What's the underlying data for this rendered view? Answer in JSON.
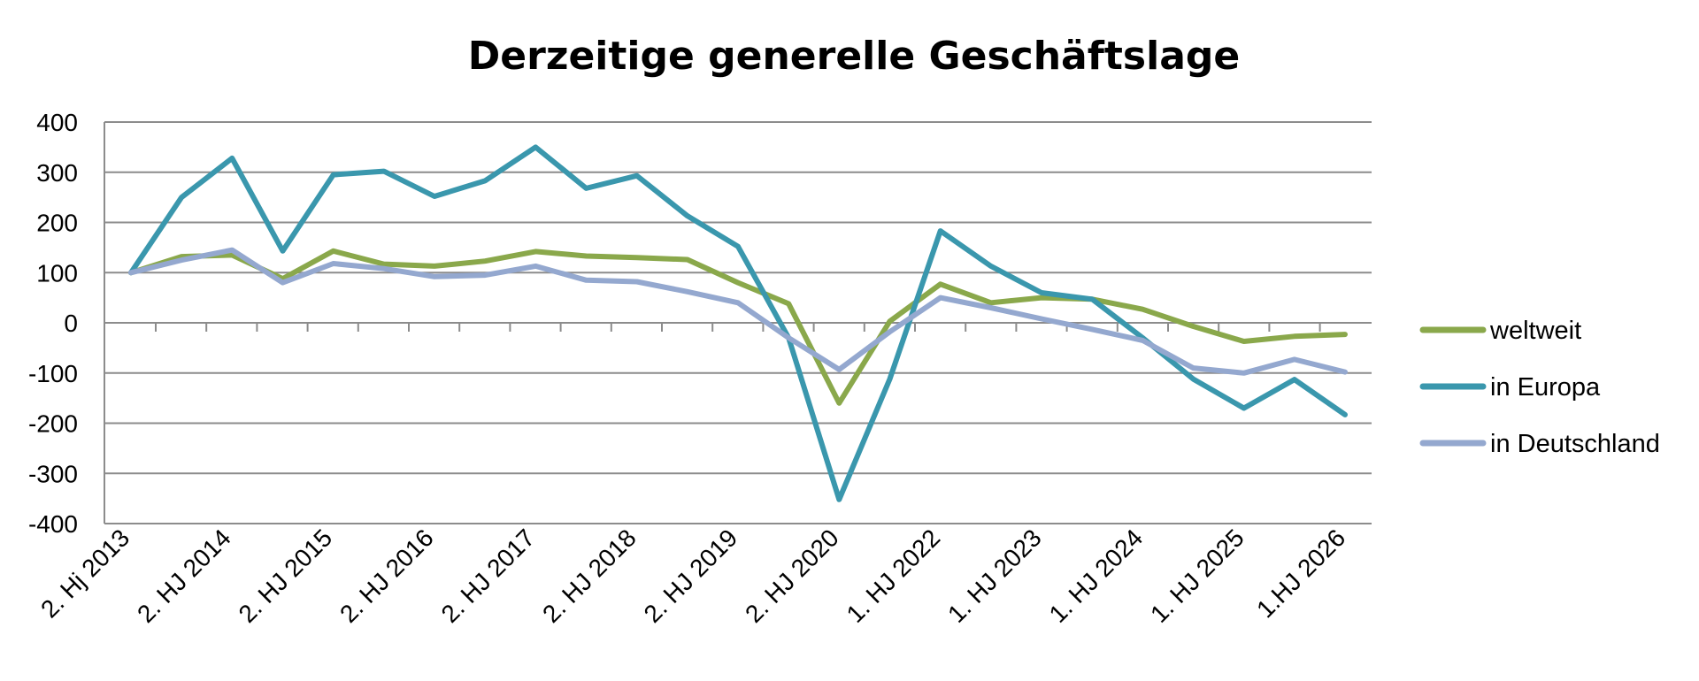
{
  "chart_data": {
    "type": "line",
    "title": "Derzeitige generelle Geschäftslage",
    "xlabel": "",
    "ylabel": "",
    "ylim": [
      -400,
      400
    ],
    "yticks": [
      400,
      300,
      200,
      100,
      0,
      -100,
      -200,
      -300,
      -400
    ],
    "yticks_labels": [
      "400",
      "300",
      "200",
      "100",
      "0",
      "-100",
      "-200",
      "-300",
      "-400"
    ],
    "grid": true,
    "legend_position": "right",
    "x_labels": [
      "2. Hj 2013",
      "2. HJ 2014",
      "2. HJ 2015",
      "2. HJ 2016",
      "2. HJ 2017",
      "2. HJ 2018",
      "2. HJ 2019",
      "2. HJ 2020",
      "1. HJ 2022",
      "1. HJ 2023",
      "1. HJ 2024",
      "1. HJ 2025",
      "1.HJ 2026"
    ],
    "series": [
      {
        "name": "weltweit",
        "color": "#8aa84b",
        "values": [
          100,
          132,
          135,
          88,
          143,
          117,
          113,
          123,
          142,
          133,
          130,
          126,
          80,
          38,
          -160,
          3,
          77,
          40,
          50,
          47,
          27,
          -7,
          -37,
          -27,
          -23
        ]
      },
      {
        "name": "in Europa",
        "color": "#3a97ad",
        "values": [
          100,
          250,
          328,
          143,
          295,
          302,
          252,
          283,
          350,
          268,
          293,
          213,
          152,
          -30,
          -352,
          -112,
          183,
          113,
          60,
          47,
          -30,
          -112,
          -170,
          -113,
          -183
        ]
      },
      {
        "name": "in Deutschland",
        "color": "#94a8cf",
        "values": [
          100,
          125,
          145,
          80,
          118,
          108,
          92,
          95,
          113,
          85,
          82,
          62,
          40,
          -30,
          -93,
          -18,
          50,
          30,
          8,
          -13,
          -35,
          -90,
          -100,
          -73,
          -98
        ]
      }
    ]
  }
}
